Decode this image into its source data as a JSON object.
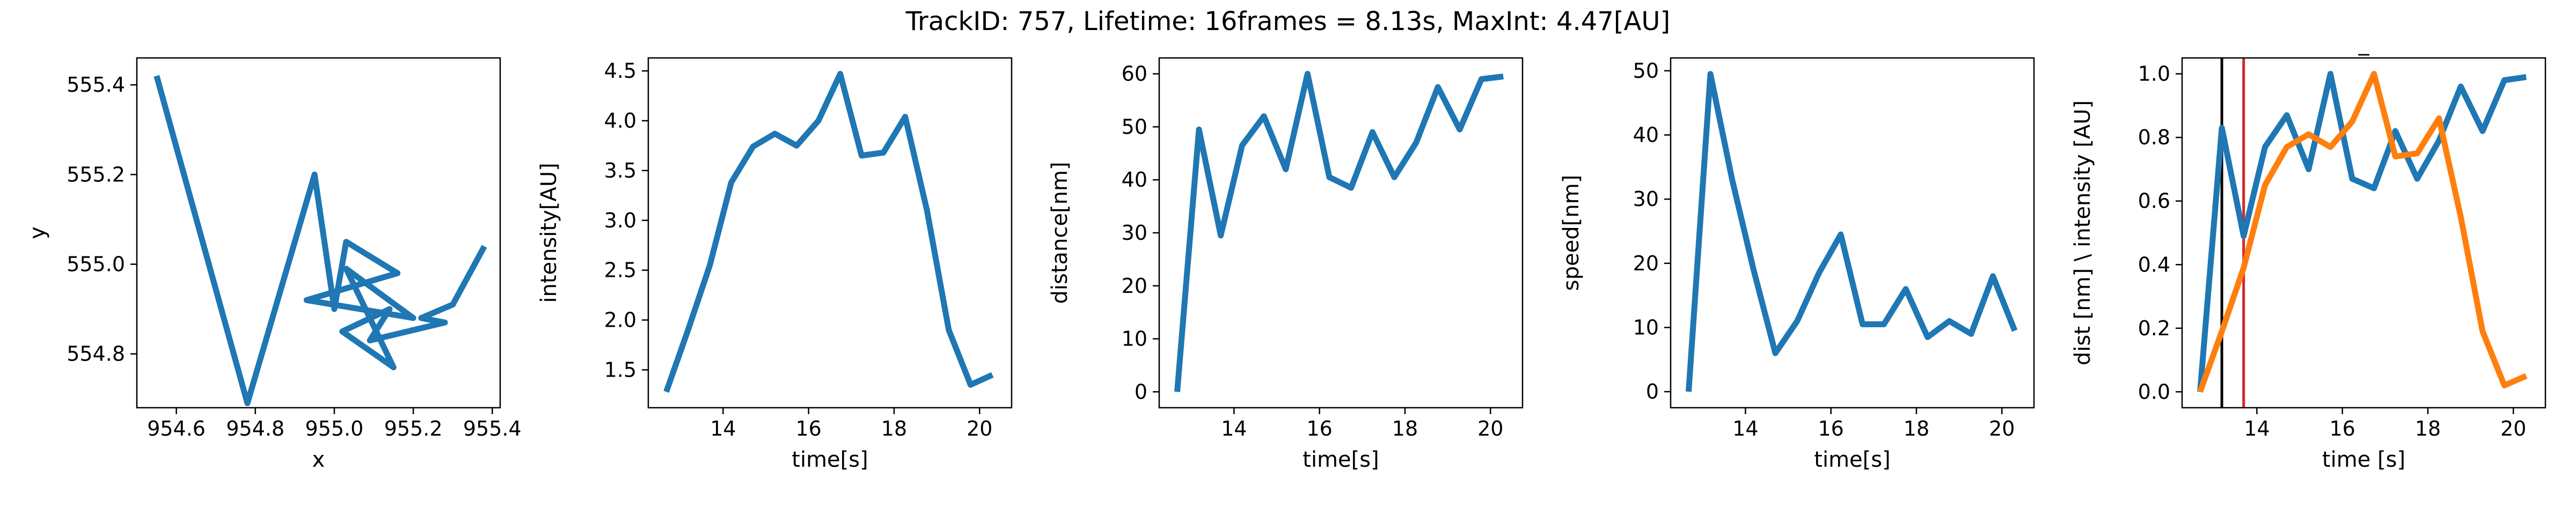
{
  "figure": {
    "title": "TrackID: 757, Lifetime: 16frames = 8.13s, MaxInt: 4.47[AU]"
  },
  "chart_data": [
    {
      "type": "line",
      "title": "",
      "xlabel": "x",
      "ylabel": "y",
      "xlim": [
        954.5,
        955.42
      ],
      "ylim": [
        554.68,
        555.46
      ],
      "xticks": [
        954.6,
        954.8,
        955.0,
        955.2,
        955.4
      ],
      "xtick_labels": [
        "954.6",
        "954.8",
        "955.0",
        "955.2",
        "955.4"
      ],
      "yticks": [
        554.8,
        555.0,
        555.2,
        555.4
      ],
      "ytick_labels": [
        "554.8",
        "555.0",
        "555.2",
        "555.4"
      ],
      "series": [
        {
          "color": "#1f77b4",
          "x": [
            954.55,
            954.78,
            954.95,
            955.0,
            955.03,
            955.16,
            954.93,
            955.2,
            955.03,
            955.15,
            955.02,
            955.14,
            955.09,
            955.28,
            955.22,
            955.3,
            955.38
          ],
          "y": [
            555.42,
            554.69,
            555.2,
            554.9,
            555.05,
            554.98,
            554.92,
            554.88,
            554.99,
            554.77,
            554.85,
            554.9,
            554.83,
            554.87,
            554.88,
            554.91,
            555.04
          ]
        }
      ]
    },
    {
      "type": "line",
      "title": "",
      "xlabel": "time[s]",
      "ylabel": "intensity[AU]",
      "xlim": [
        12.25,
        20.75
      ],
      "ylim": [
        1.12,
        4.63
      ],
      "xticks": [
        14,
        16,
        18,
        20
      ],
      "xtick_labels": [
        "14",
        "16",
        "18",
        "20"
      ],
      "yticks": [
        1.5,
        2.0,
        2.5,
        3.0,
        3.5,
        4.0,
        4.5
      ],
      "ytick_labels": [
        "1.5",
        "2.0",
        "2.5",
        "3.0",
        "3.5",
        "4.0",
        "4.5"
      ],
      "series": [
        {
          "color": "#1f77b4",
          "x": [
            12.67,
            13.18,
            13.69,
            14.19,
            14.7,
            15.21,
            15.72,
            16.23,
            16.74,
            17.24,
            17.75,
            18.26,
            18.77,
            19.28,
            19.79,
            20.3
          ],
          "y": [
            1.28,
            1.9,
            2.55,
            3.38,
            3.74,
            3.87,
            3.75,
            4.0,
            4.47,
            3.65,
            3.68,
            4.04,
            3.1,
            1.9,
            1.35,
            1.45
          ]
        }
      ]
    },
    {
      "type": "line",
      "title": "",
      "xlabel": "time[s]",
      "ylabel": "distance[nm]",
      "xlim": [
        12.25,
        20.75
      ],
      "ylim": [
        -3,
        63
      ],
      "xticks": [
        14,
        16,
        18,
        20
      ],
      "xtick_labels": [
        "14",
        "16",
        "18",
        "20"
      ],
      "yticks": [
        0,
        10,
        20,
        30,
        40,
        50,
        60
      ],
      "ytick_labels": [
        "0",
        "10",
        "20",
        "30",
        "40",
        "50",
        "60"
      ],
      "series": [
        {
          "color": "#1f77b4",
          "x": [
            12.67,
            13.18,
            13.69,
            14.19,
            14.7,
            15.21,
            15.72,
            16.23,
            16.74,
            17.24,
            17.75,
            18.26,
            18.77,
            19.28,
            19.79,
            20.3
          ],
          "y": [
            0,
            49.5,
            29.5,
            46.5,
            52,
            42,
            60,
            40.5,
            38.5,
            49,
            40.5,
            47,
            57.5,
            49.5,
            59,
            59.5
          ]
        }
      ]
    },
    {
      "type": "line",
      "title": "",
      "xlabel": "time[s]",
      "ylabel": "speed[nm]",
      "xlim": [
        12.25,
        20.75
      ],
      "ylim": [
        -2.5,
        52
      ],
      "xticks": [
        14,
        16,
        18,
        20
      ],
      "xtick_labels": [
        "14",
        "16",
        "18",
        "20"
      ],
      "yticks": [
        0,
        10,
        20,
        30,
        40,
        50
      ],
      "ytick_labels": [
        "0",
        "10",
        "20",
        "30",
        "40",
        "50"
      ],
      "series": [
        {
          "color": "#1f77b4",
          "x": [
            12.67,
            13.18,
            13.69,
            14.19,
            14.7,
            15.21,
            15.72,
            16.23,
            16.74,
            17.24,
            17.75,
            18.26,
            18.77,
            19.28,
            19.79,
            20.3
          ],
          "y": [
            0,
            49.5,
            33,
            19,
            6,
            11,
            18.5,
            24.5,
            10.5,
            10.5,
            16,
            8.5,
            11,
            9,
            18,
            9.5
          ]
        }
      ]
    },
    {
      "type": "line",
      "title": "_",
      "xlabel": "time [s]",
      "ylabel": "dist [nm] \\ intensity [AU]",
      "xlim": [
        12.25,
        20.75
      ],
      "ylim": [
        -0.05,
        1.05
      ],
      "xticks": [
        14,
        16,
        18,
        20
      ],
      "xtick_labels": [
        "14",
        "16",
        "18",
        "20"
      ],
      "yticks": [
        0.0,
        0.2,
        0.4,
        0.6,
        0.8,
        1.0
      ],
      "ytick_labels": [
        "0.0",
        "0.2",
        "0.4",
        "0.6",
        "0.8",
        "1.0"
      ],
      "vlines": [
        {
          "x": 13.18,
          "color": "#000000"
        },
        {
          "x": 13.69,
          "color": "#d62728"
        }
      ],
      "series": [
        {
          "color": "#1f77b4",
          "x": [
            12.67,
            13.18,
            13.69,
            14.19,
            14.7,
            15.21,
            15.72,
            16.23,
            16.74,
            17.24,
            17.75,
            18.26,
            18.77,
            19.28,
            19.79,
            20.3
          ],
          "y": [
            0.0,
            0.83,
            0.49,
            0.77,
            0.87,
            0.7,
            1.0,
            0.67,
            0.64,
            0.82,
            0.67,
            0.79,
            0.96,
            0.82,
            0.98,
            0.99
          ]
        },
        {
          "color": "#ff7f0e",
          "x": [
            12.67,
            13.18,
            13.69,
            14.19,
            14.7,
            15.21,
            15.72,
            16.23,
            16.74,
            17.24,
            17.75,
            18.26,
            18.77,
            19.28,
            19.79,
            20.3
          ],
          "y": [
            0.0,
            0.19,
            0.39,
            0.65,
            0.77,
            0.81,
            0.77,
            0.85,
            1.0,
            0.74,
            0.75,
            0.86,
            0.55,
            0.19,
            0.02,
            0.05
          ]
        }
      ]
    }
  ]
}
